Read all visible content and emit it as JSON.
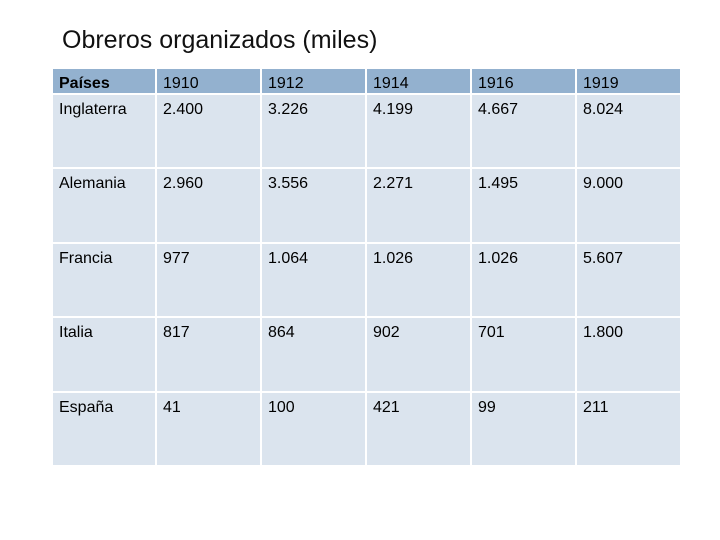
{
  "title": "Obreros organizados (miles)",
  "table": {
    "headers": [
      "Países",
      "1910",
      "1912",
      "1914",
      "1916",
      "1919"
    ],
    "rows": [
      [
        "Inglaterra",
        "2.400",
        "3.226",
        "4.199",
        "4.667",
        "8.024"
      ],
      [
        "Alemania",
        "2.960",
        "3.556",
        "2.271",
        "1.495",
        "9.000"
      ],
      [
        "Francia",
        "977",
        "1.064",
        "1.026",
        "1.026",
        "5.607"
      ],
      [
        "Italia",
        "817",
        "864",
        "902",
        "701",
        "1.800"
      ],
      [
        "España",
        "41",
        "100",
        "421",
        "99",
        "211"
      ]
    ]
  },
  "colors": {
    "header_bg": "#93b1cf",
    "row_bg": "#dbe4ee"
  }
}
